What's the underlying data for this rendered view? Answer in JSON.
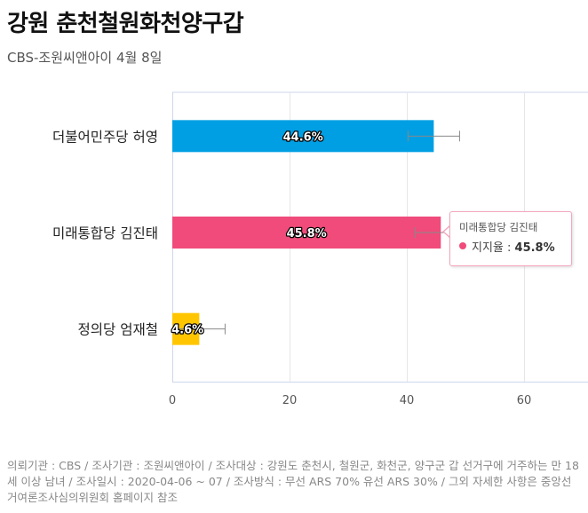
{
  "header": {
    "title": "강원 춘천철원화천양구갑",
    "subtitle": "CBS-조원씨앤아이 4월 8일"
  },
  "chart_data": {
    "type": "bar",
    "orientation": "horizontal",
    "categories": [
      "더불어민주당 허영",
      "미래통합당 김진태",
      "정의당 엄재철"
    ],
    "values": [
      44.6,
      45.8,
      4.6
    ],
    "value_labels": [
      "44.6%",
      "45.8%",
      "4.6%"
    ],
    "error_bars": [
      {
        "low": 40.2,
        "high": 49.0
      },
      {
        "low": 41.4,
        "high": 50.2
      },
      {
        "low": 0.2,
        "high": 9.0
      }
    ],
    "colors": [
      "#009fe3",
      "#f04b7a",
      "#ffc600"
    ],
    "xlim": [
      0,
      70
    ],
    "x_ticks": [
      0,
      20,
      40,
      60
    ],
    "grid": true
  },
  "tooltip": {
    "name": "미래통합당 김진태",
    "label": "지지율 : ",
    "value": "45.8%",
    "color": "#f04b7a"
  },
  "footer": {
    "text": "의뢰기관 : CBS / 조사기관 : 조원씨앤아이 / 조사대상 : 강원도 춘천시, 철원군, 화천군, 양구군 갑 선거구에 거주하는 만 18세 이상 남녀 / 조사일시 : 2020-04-06 ~ 07 / 조사방식 : 무선 ARS 70% 유선 ARS 30% / 그외 자세한 사항은 중앙선거여론조사심의위원회 홈페이지 참조"
  }
}
